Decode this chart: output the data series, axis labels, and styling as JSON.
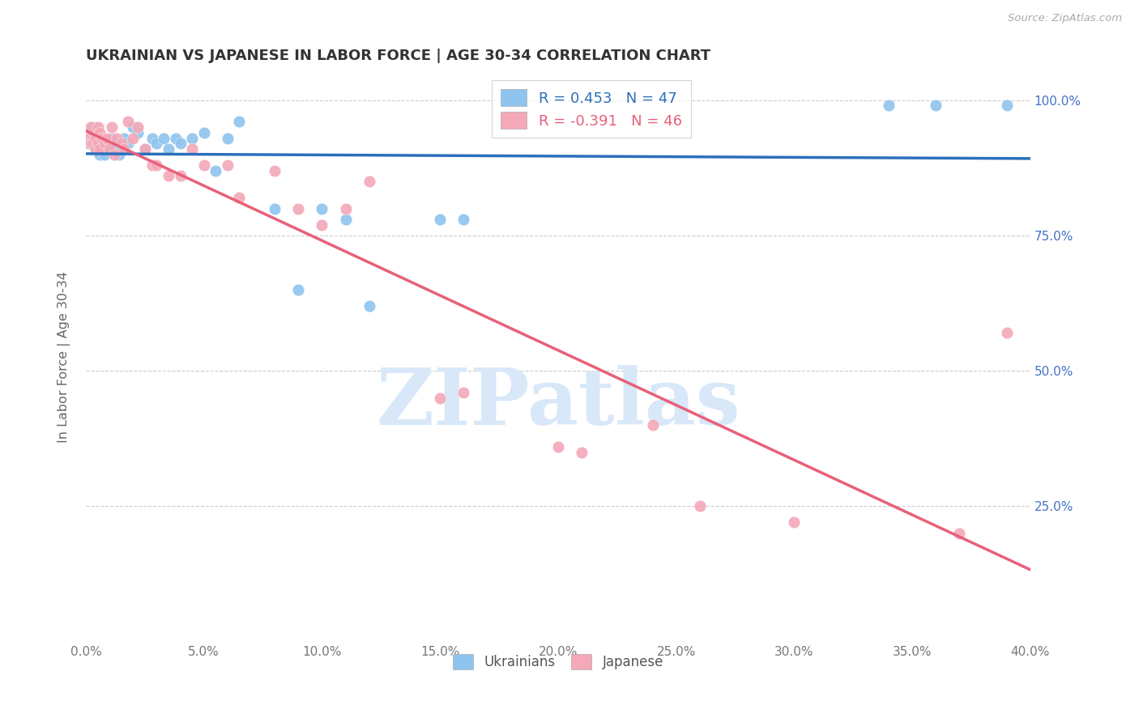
{
  "title": "UKRAINIAN VS JAPANESE IN LABOR FORCE | AGE 30-34 CORRELATION CHART",
  "source": "Source: ZipAtlas.com",
  "ylabel": "In Labor Force | Age 30-34",
  "xlim": [
    0.0,
    0.4
  ],
  "ylim": [
    0.0,
    1.05
  ],
  "yticks": [
    0.0,
    0.25,
    0.5,
    0.75,
    1.0
  ],
  "xticks": [
    0.0,
    0.05,
    0.1,
    0.15,
    0.2,
    0.25,
    0.3,
    0.35,
    0.4
  ],
  "blue_R": 0.453,
  "blue_N": 47,
  "pink_R": -0.391,
  "pink_N": 46,
  "blue_color": "#8EC4EE",
  "pink_color": "#F4A8B8",
  "blue_line_color": "#2B6FBB",
  "pink_line_color": "#E8607A",
  "legend_blue": "Ukrainians",
  "legend_pink": "Japanese",
  "watermark": "ZIPatlas",
  "watermark_color": "#D8E8F8",
  "blue_x": [
    0.001,
    0.002,
    0.003,
    0.003,
    0.004,
    0.004,
    0.005,
    0.005,
    0.006,
    0.006,
    0.007,
    0.007,
    0.008,
    0.008,
    0.009,
    0.01,
    0.011,
    0.012,
    0.013,
    0.014,
    0.015,
    0.016,
    0.018,
    0.02,
    0.022,
    0.025,
    0.028,
    0.03,
    0.033,
    0.035,
    0.038,
    0.04,
    0.045,
    0.05,
    0.055,
    0.06,
    0.065,
    0.08,
    0.09,
    0.1,
    0.11,
    0.12,
    0.15,
    0.16,
    0.34,
    0.36,
    0.39
  ],
  "blue_y": [
    0.92,
    0.93,
    0.92,
    0.95,
    0.91,
    0.94,
    0.93,
    0.91,
    0.92,
    0.9,
    0.91,
    0.93,
    0.92,
    0.9,
    0.91,
    0.92,
    0.93,
    0.91,
    0.92,
    0.9,
    0.91,
    0.93,
    0.92,
    0.95,
    0.94,
    0.91,
    0.93,
    0.92,
    0.93,
    0.91,
    0.93,
    0.92,
    0.93,
    0.94,
    0.87,
    0.93,
    0.96,
    0.8,
    0.65,
    0.8,
    0.78,
    0.62,
    0.78,
    0.78,
    0.99,
    0.99,
    0.99
  ],
  "pink_x": [
    0.001,
    0.002,
    0.002,
    0.003,
    0.003,
    0.004,
    0.004,
    0.005,
    0.005,
    0.006,
    0.006,
    0.007,
    0.008,
    0.009,
    0.01,
    0.011,
    0.012,
    0.013,
    0.015,
    0.016,
    0.018,
    0.02,
    0.022,
    0.025,
    0.028,
    0.03,
    0.035,
    0.04,
    0.045,
    0.05,
    0.06,
    0.065,
    0.08,
    0.09,
    0.1,
    0.11,
    0.12,
    0.15,
    0.16,
    0.2,
    0.21,
    0.24,
    0.26,
    0.3,
    0.37,
    0.39
  ],
  "pink_y": [
    0.93,
    0.95,
    0.92,
    0.93,
    0.92,
    0.91,
    0.93,
    0.95,
    0.92,
    0.94,
    0.91,
    0.93,
    0.92,
    0.93,
    0.91,
    0.95,
    0.9,
    0.93,
    0.92,
    0.91,
    0.96,
    0.93,
    0.95,
    0.91,
    0.88,
    0.88,
    0.86,
    0.86,
    0.91,
    0.88,
    0.88,
    0.82,
    0.87,
    0.8,
    0.77,
    0.8,
    0.85,
    0.45,
    0.46,
    0.36,
    0.35,
    0.4,
    0.25,
    0.22,
    0.2,
    0.57
  ]
}
